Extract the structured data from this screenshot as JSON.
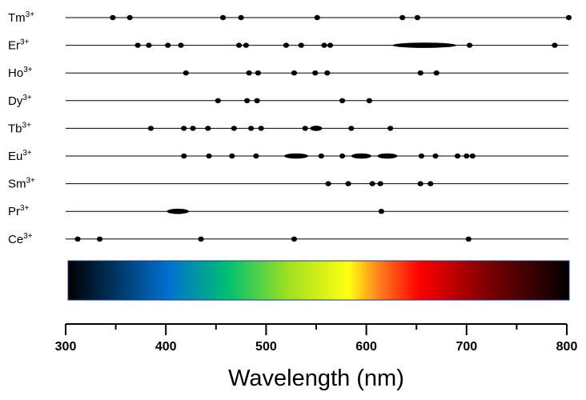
{
  "chart_data": {
    "type": "scatter",
    "title": "",
    "xlabel": "Wavelength (nm)",
    "ylabel": "",
    "xlim": [
      300,
      800
    ],
    "x_ticks": [
      300,
      400,
      500,
      600,
      700,
      800
    ],
    "x_tick_labels": [
      "300",
      "400",
      "500",
      "600",
      "700",
      "800"
    ],
    "grid": false,
    "legend": "none",
    "spectrum_bar": {
      "range": [
        300,
        800
      ],
      "stops": [
        {
          "wavelength": 300,
          "color": "#000000"
        },
        {
          "wavelength": 400,
          "color": "#0070d0"
        },
        {
          "wavelength": 460,
          "color": "#00c070"
        },
        {
          "wavelength": 520,
          "color": "#a0e020"
        },
        {
          "wavelength": 580,
          "color": "#ffff10"
        },
        {
          "wavelength": 610,
          "color": "#ff8020"
        },
        {
          "wavelength": 650,
          "color": "#ff0000"
        },
        {
          "wavelength": 720,
          "color": "#7a0000"
        },
        {
          "wavelength": 800,
          "color": "#000000"
        }
      ]
    },
    "series": [
      {
        "ion": "Tm",
        "charge": "3+",
        "lines": [
          {
            "x": 347
          },
          {
            "x": 364
          },
          {
            "x": 457
          },
          {
            "x": 475
          },
          {
            "x": 551
          },
          {
            "x": 636
          },
          {
            "x": 651
          },
          {
            "x": 802
          }
        ]
      },
      {
        "ion": "Er",
        "charge": "3+",
        "lines": [
          {
            "x": 372
          },
          {
            "x": 383
          },
          {
            "x": 402
          },
          {
            "x": 415
          },
          {
            "x": 473
          },
          {
            "x": 480
          },
          {
            "x": 520
          },
          {
            "x": 535
          },
          {
            "x": 558
          },
          {
            "x": 564
          },
          {
            "x": 626,
            "x_end": 690
          },
          {
            "x": 703
          },
          {
            "x": 788
          }
        ]
      },
      {
        "ion": "Ho",
        "charge": "3+",
        "lines": [
          {
            "x": 420
          },
          {
            "x": 483
          },
          {
            "x": 492
          },
          {
            "x": 528
          },
          {
            "x": 549
          },
          {
            "x": 561
          },
          {
            "x": 654
          },
          {
            "x": 670
          }
        ]
      },
      {
        "ion": "Dy",
        "charge": "3+",
        "lines": [
          {
            "x": 452
          },
          {
            "x": 481
          },
          {
            "x": 491
          },
          {
            "x": 576
          },
          {
            "x": 603
          }
        ]
      },
      {
        "ion": "Tb",
        "charge": "3+",
        "lines": [
          {
            "x": 385
          },
          {
            "x": 418
          },
          {
            "x": 427
          },
          {
            "x": 442
          },
          {
            "x": 468
          },
          {
            "x": 485
          },
          {
            "x": 495
          },
          {
            "x": 539
          },
          {
            "x": 544,
            "x_end": 556
          },
          {
            "x": 585
          },
          {
            "x": 624
          }
        ]
      },
      {
        "ion": "Eu",
        "charge": "3+",
        "lines": [
          {
            "x": 418
          },
          {
            "x": 443
          },
          {
            "x": 466
          },
          {
            "x": 490
          },
          {
            "x": 518,
            "x_end": 542
          },
          {
            "x": 555
          },
          {
            "x": 576
          },
          {
            "x": 585,
            "x_end": 605
          },
          {
            "x": 611,
            "x_end": 631
          },
          {
            "x": 655
          },
          {
            "x": 669
          },
          {
            "x": 691
          },
          {
            "x": 700
          },
          {
            "x": 706
          }
        ]
      },
      {
        "ion": "Sm",
        "charge": "3+",
        "lines": [
          {
            "x": 562
          },
          {
            "x": 582
          },
          {
            "x": 606
          },
          {
            "x": 614
          },
          {
            "x": 654
          },
          {
            "x": 664
          }
        ]
      },
      {
        "ion": "Pr",
        "charge": "3+",
        "lines": [
          {
            "x": 401,
            "x_end": 423
          },
          {
            "x": 615
          }
        ]
      },
      {
        "ion": "Ce",
        "charge": "3+",
        "lines": [
          {
            "x": 312
          },
          {
            "x": 334
          },
          {
            "x": 435
          },
          {
            "x": 528
          },
          {
            "x": 702
          }
        ]
      }
    ]
  }
}
